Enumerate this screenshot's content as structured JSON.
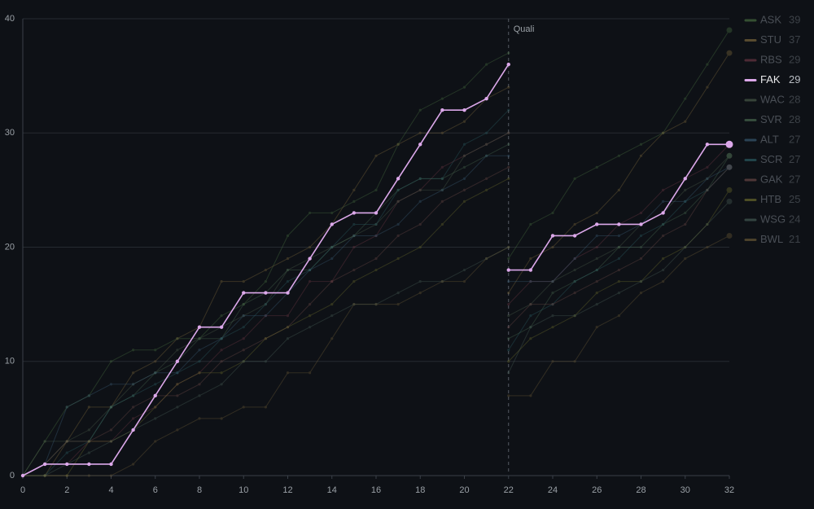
{
  "chart_data": {
    "type": "line",
    "x": [
      0,
      1,
      2,
      3,
      4,
      5,
      6,
      7,
      8,
      9,
      10,
      11,
      12,
      13,
      14,
      15,
      16,
      17,
      18,
      19,
      20,
      21,
      22,
      22,
      22,
      23,
      24,
      25,
      26,
      27,
      28,
      29,
      30,
      31,
      32
    ],
    "xlim": [
      0,
      32
    ],
    "xticks": [
      0,
      2,
      4,
      6,
      8,
      10,
      12,
      14,
      16,
      18,
      20,
      22,
      24,
      26,
      28,
      30,
      32
    ],
    "ylim": [
      0,
      40
    ],
    "yticks": [
      0,
      10,
      20,
      30,
      40
    ],
    "grid": true,
    "annotations": [
      {
        "x": 22,
        "text": "Quali"
      }
    ],
    "highlight": "FAK",
    "series": [
      {
        "name": "ASK",
        "color": "#4f7a45",
        "values": [
          0,
          3,
          6,
          7,
          10,
          11,
          11,
          12,
          12,
          14,
          15,
          17,
          21,
          23,
          23,
          24,
          25,
          29,
          32,
          33,
          34,
          36,
          37,
          null,
          19,
          22,
          23,
          26,
          27,
          28,
          29,
          30,
          33,
          36,
          39
        ]
      },
      {
        "name": "STU",
        "color": "#8a7240",
        "values": [
          0,
          0,
          3,
          6,
          6,
          9,
          10,
          12,
          13,
          17,
          17,
          18,
          19,
          20,
          22,
          25,
          28,
          29,
          30,
          30,
          31,
          33,
          34,
          null,
          16,
          19,
          20,
          22,
          23,
          25,
          28,
          30,
          31,
          34,
          37
        ]
      },
      {
        "name": "RBS",
        "color": "#7a3c4a",
        "values": [
          0,
          1,
          1,
          3,
          3,
          5,
          6,
          8,
          9,
          11,
          12,
          14,
          14,
          17,
          17,
          20,
          21,
          24,
          25,
          27,
          28,
          29,
          30,
          null,
          15,
          17,
          17,
          19,
          20,
          22,
          23,
          25,
          26,
          27,
          29
        ]
      },
      {
        "name": "FAK",
        "color": "#dca8ea",
        "values": [
          0,
          1,
          1,
          1,
          1,
          4,
          7,
          10,
          13,
          13,
          16,
          16,
          16,
          19,
          22,
          23,
          23,
          26,
          29,
          32,
          32,
          33,
          36,
          null,
          18,
          18,
          21,
          21,
          22,
          22,
          22,
          23,
          26,
          29,
          29
        ]
      },
      {
        "name": "WAC",
        "color": "#52654f",
        "values": [
          0,
          3,
          3,
          4,
          6,
          8,
          9,
          11,
          12,
          13,
          14,
          15,
          18,
          19,
          20,
          21,
          22,
          24,
          25,
          25,
          28,
          29,
          30,
          null,
          14,
          15,
          17,
          18,
          19,
          20,
          22,
          23,
          25,
          26,
          28
        ]
      },
      {
        "name": "SVR",
        "color": "#4f7456",
        "values": [
          0,
          1,
          3,
          3,
          6,
          7,
          9,
          10,
          12,
          12,
          15,
          16,
          18,
          18,
          20,
          21,
          23,
          25,
          26,
          26,
          27,
          28,
          29,
          null,
          12,
          13,
          16,
          17,
          18,
          20,
          20,
          22,
          23,
          25,
          28
        ]
      },
      {
        "name": "ALT",
        "color": "#3f6580",
        "values": [
          0,
          1,
          6,
          7,
          8,
          8,
          9,
          9,
          11,
          12,
          14,
          14,
          16,
          18,
          19,
          21,
          21,
          22,
          24,
          25,
          26,
          28,
          28,
          null,
          17,
          17,
          17,
          19,
          21,
          21,
          22,
          24,
          24,
          26,
          27
        ]
      },
      {
        "name": "SCR",
        "color": "#2f676d",
        "values": [
          0,
          0,
          2,
          3,
          6,
          7,
          8,
          9,
          10,
          12,
          13,
          15,
          17,
          18,
          20,
          22,
          22,
          25,
          26,
          26,
          29,
          30,
          32,
          null,
          11,
          14,
          15,
          17,
          18,
          19,
          21,
          22,
          24,
          25,
          27
        ]
      },
      {
        "name": "GAK",
        "color": "#7a504d",
        "values": [
          0,
          1,
          3,
          3,
          4,
          6,
          7,
          7,
          8,
          10,
          11,
          12,
          13,
          15,
          17,
          18,
          19,
          21,
          22,
          24,
          25,
          26,
          27,
          null,
          13,
          15,
          15,
          16,
          17,
          18,
          19,
          21,
          22,
          25,
          27
        ]
      },
      {
        "name": "HTB",
        "color": "#77772f",
        "values": [
          0,
          0,
          0,
          3,
          3,
          4,
          6,
          8,
          9,
          9,
          10,
          12,
          13,
          14,
          15,
          17,
          18,
          19,
          20,
          22,
          24,
          25,
          26,
          null,
          10,
          12,
          13,
          14,
          16,
          17,
          17,
          19,
          20,
          22,
          25
        ]
      },
      {
        "name": "WSG",
        "color": "#4d665d",
        "values": [
          0,
          0,
          1,
          2,
          3,
          4,
          5,
          6,
          7,
          8,
          10,
          10,
          12,
          13,
          14,
          15,
          15,
          16,
          17,
          17,
          18,
          19,
          20,
          null,
          9,
          13,
          14,
          14,
          15,
          16,
          17,
          18,
          20,
          22,
          24
        ]
      },
      {
        "name": "BWL",
        "color": "#75623a",
        "values": [
          0,
          0,
          0,
          0,
          0,
          1,
          3,
          4,
          5,
          5,
          6,
          6,
          9,
          9,
          12,
          15,
          15,
          15,
          16,
          17,
          17,
          19,
          20,
          null,
          7,
          7,
          10,
          10,
          13,
          14,
          16,
          17,
          19,
          20,
          21
        ]
      }
    ]
  }
}
